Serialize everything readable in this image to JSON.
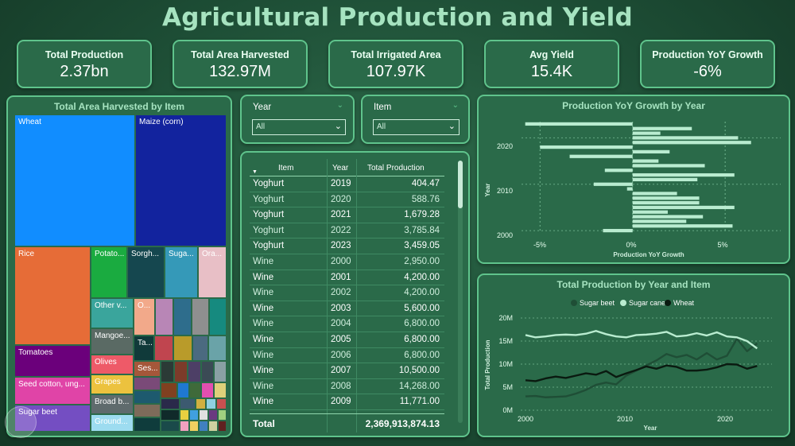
{
  "title": "Agricultural Production and Yield",
  "kpis": [
    {
      "label": "Total Production",
      "value": "2.37bn"
    },
    {
      "label": "Total Area Harvested",
      "value": "132.97M"
    },
    {
      "label": "Total Irrigated Area",
      "value": "107.97K"
    },
    {
      "label": "Avg Yield",
      "value": "15.4K"
    },
    {
      "label": "Production YoY Growth",
      "value": "-6%"
    }
  ],
  "treemap": {
    "title": "Total Area Harvested by Item",
    "labels": {
      "wheat": "Wheat",
      "maize": "Maize (corn)",
      "rice": "Rice",
      "potato": "Potato...",
      "sorghum": "Sorgh...",
      "sugar": "Suga...",
      "orange": "Ora...",
      "other": "Other v...",
      "o": "O...",
      "mango": "Mangoe...",
      "ta": "Ta...",
      "tomatoes": "Tomatoes",
      "olives": "Olives",
      "ses": "Ses...",
      "seedcotton": "Seed cotton, ung...",
      "grapes": "Grapes",
      "broad": "Broad b...",
      "ground": "Ground...",
      "sugarbeet": "Sugar beet"
    },
    "colors": {
      "wheat": "#118dff",
      "maize": "#12239e",
      "rice": "#e66c37",
      "potato": "#1aab40",
      "sorghum": "#15474f",
      "sugar": "#3599b8",
      "orange": "#e8bfc6",
      "tomatoes": "#6b007b",
      "seedcotton": "#e044a7",
      "sugarbeet": "#744ec2"
    }
  },
  "slicers": {
    "year": {
      "label": "Year",
      "value": "All"
    },
    "item": {
      "label": "Item",
      "value": "All"
    }
  },
  "table": {
    "headers": {
      "item": "Item",
      "year": "Year",
      "production": "Total Production"
    },
    "rows": [
      {
        "item": "Yoghurt",
        "year": "2019",
        "production": "404.47"
      },
      {
        "item": "Yoghurt",
        "year": "2020",
        "production": "588.76"
      },
      {
        "item": "Yoghurt",
        "year": "2021",
        "production": "1,679.28"
      },
      {
        "item": "Yoghurt",
        "year": "2022",
        "production": "3,785.84"
      },
      {
        "item": "Yoghurt",
        "year": "2023",
        "production": "3,459.05"
      },
      {
        "item": "Wine",
        "year": "2000",
        "production": "2,950.00"
      },
      {
        "item": "Wine",
        "year": "2001",
        "production": "4,200.00"
      },
      {
        "item": "Wine",
        "year": "2002",
        "production": "4,200.00"
      },
      {
        "item": "Wine",
        "year": "2003",
        "production": "5,600.00"
      },
      {
        "item": "Wine",
        "year": "2004",
        "production": "6,800.00"
      },
      {
        "item": "Wine",
        "year": "2005",
        "production": "6,800.00"
      },
      {
        "item": "Wine",
        "year": "2006",
        "production": "6,800.00"
      },
      {
        "item": "Wine",
        "year": "2007",
        "production": "10,500.00"
      },
      {
        "item": "Wine",
        "year": "2008",
        "production": "14,268.00"
      },
      {
        "item": "Wine",
        "year": "2009",
        "production": "11,771.00"
      }
    ],
    "total_label": "Total",
    "total_value": "2,369,913,874.13"
  },
  "yoy_chart": {
    "title": "Production YoY Growth by Year",
    "ylabel": "Year",
    "xlabel": "Production YoY Growth",
    "xticks": [
      "-5%",
      "0%",
      "5%"
    ],
    "yticks": [
      "2020",
      "2010",
      "2000"
    ]
  },
  "line_chart": {
    "title": "Total Production by Year and Item",
    "legend": [
      "Sugar beet",
      "Sugar cane",
      "Wheat"
    ],
    "ylabel": "Total Production",
    "xlabel": "Year",
    "yticks": [
      "20M",
      "15M",
      "10M",
      "5M",
      "0M"
    ],
    "xticks": [
      "2000",
      "2010",
      "2020"
    ],
    "colors": {
      "Sugar beet": "#1f4e36",
      "Sugar cane": "#b9ecd0",
      "Wheat": "#0a1a10"
    }
  },
  "chart_data": [
    {
      "type": "bar",
      "title": "Production YoY Growth by Year",
      "xlabel": "Production YoY Growth",
      "ylabel": "Year",
      "orientation": "horizontal",
      "categories": [
        "2023",
        "2022",
        "2021",
        "2020",
        "2019",
        "2018",
        "2017",
        "2016",
        "2015",
        "2014",
        "2013",
        "2012",
        "2011",
        "2010",
        "2009",
        "2008",
        "2007",
        "2006",
        "2005",
        "2004",
        "2003",
        "2002",
        "2001",
        "2000"
      ],
      "values": [
        -5.8,
        3.2,
        1.5,
        5.7,
        6.4,
        -5.0,
        2.0,
        -3.4,
        1.4,
        3.9,
        -1.5,
        5.5,
        3.5,
        -2.1,
        -0.3,
        2.4,
        3.6,
        3.6,
        5.5,
        1.9,
        3.8,
        2.9,
        5.4,
        -1.6
      ],
      "xlim": [
        -6,
        8
      ]
    },
    {
      "type": "line",
      "title": "Total Production by Year and Item",
      "xlabel": "Year",
      "ylabel": "Total Production",
      "x": [
        2000,
        2001,
        2002,
        2003,
        2004,
        2005,
        2006,
        2007,
        2008,
        2009,
        2010,
        2011,
        2012,
        2013,
        2014,
        2015,
        2016,
        2017,
        2018,
        2019,
        2020,
        2021,
        2022,
        2023
      ],
      "series": [
        {
          "name": "Sugar beet",
          "values": [
            3.0,
            3.1,
            2.8,
            2.9,
            3.0,
            3.6,
            4.4,
            5.5,
            6.0,
            5.6,
            7.5,
            8.6,
            9.7,
            10.8,
            12.2,
            11.5,
            12.0,
            11.0,
            12.4,
            11.0,
            11.8,
            15.5,
            12.8,
            14.5
          ]
        },
        {
          "name": "Sugar cane",
          "values": [
            16.3,
            15.8,
            16.0,
            16.3,
            16.4,
            16.3,
            16.6,
            17.2,
            16.5,
            16.0,
            15.8,
            16.3,
            16.4,
            16.6,
            17.0,
            16.0,
            16.2,
            16.7,
            16.2,
            16.9,
            16.0,
            15.8,
            15.0,
            13.4
          ]
        },
        {
          "name": "Wheat",
          "values": [
            6.5,
            6.3,
            6.9,
            7.3,
            7.0,
            7.5,
            8.0,
            7.7,
            8.5,
            7.2,
            8.0,
            8.7,
            9.5,
            9.0,
            9.7,
            9.4,
            8.6,
            8.6,
            8.8,
            9.3,
            10.0,
            9.9,
            9.0,
            9.6
          ]
        }
      ],
      "ylim": [
        0,
        20
      ],
      "xlim": [
        2000,
        2023
      ]
    }
  ]
}
